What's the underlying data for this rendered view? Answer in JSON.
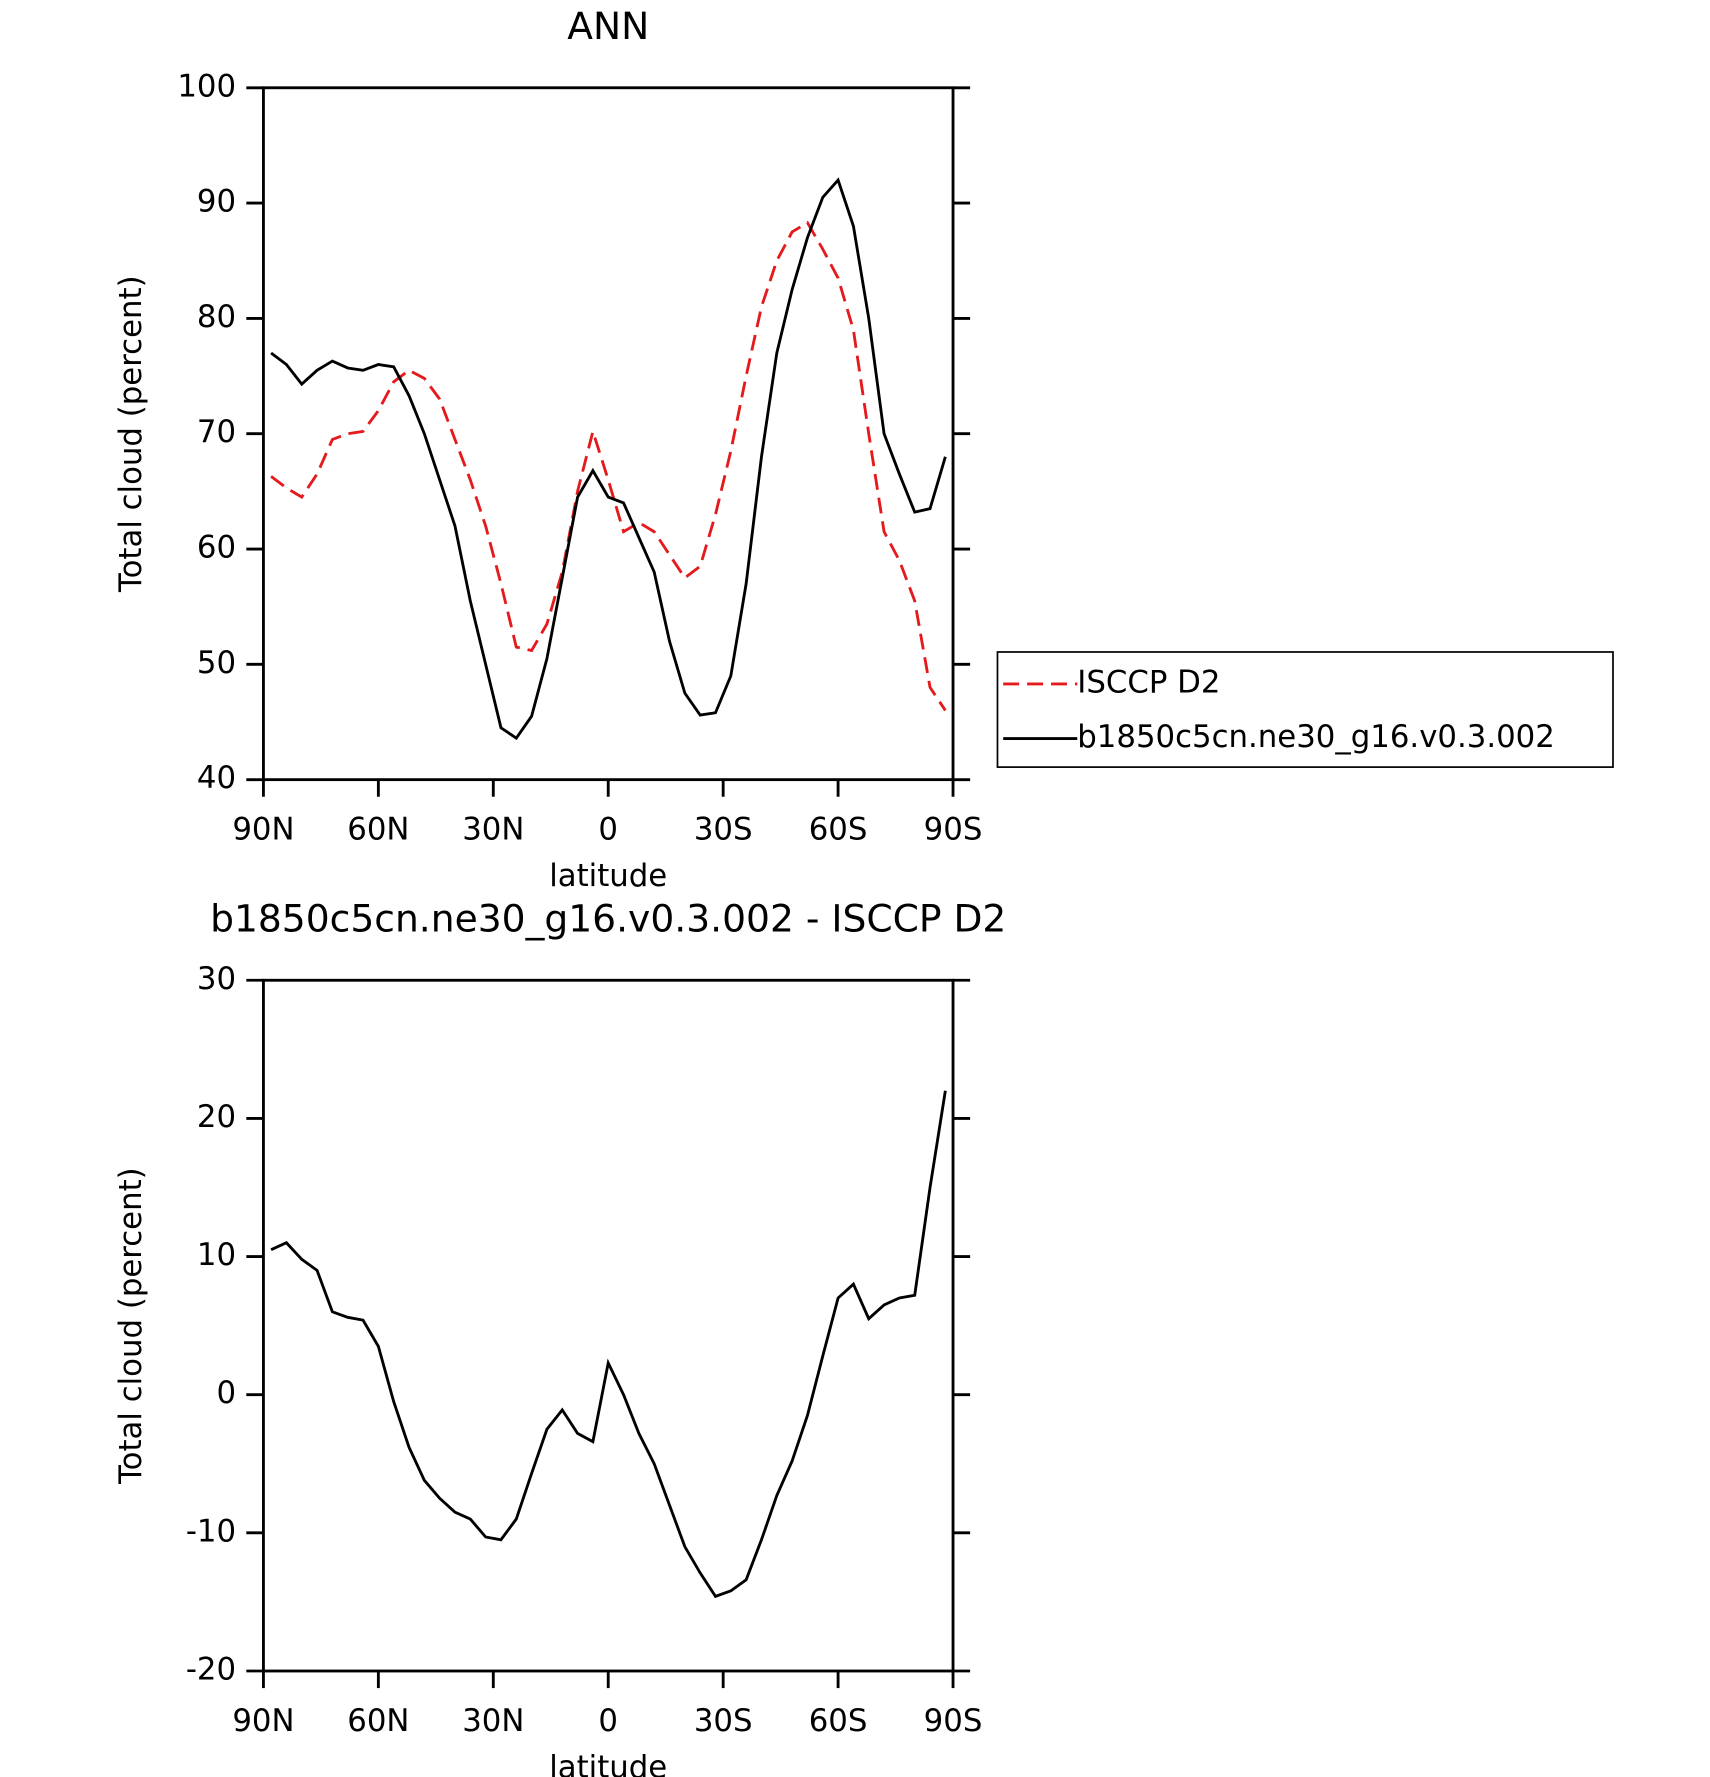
{
  "chart_data": [
    {
      "type": "line",
      "title": "ANN",
      "xlabel": "latitude",
      "ylabel": "Total cloud (percent)",
      "xlim": [
        90,
        -90
      ],
      "ylim": [
        40,
        100
      ],
      "xticks": [
        {
          "value": 90,
          "label": "90N"
        },
        {
          "value": 60,
          "label": "60N"
        },
        {
          "value": 30,
          "label": "30N"
        },
        0,
        {
          "value": -30,
          "label": "30S"
        },
        {
          "value": -60,
          "label": "60S"
        },
        {
          "value": -90,
          "label": "90S"
        }
      ],
      "yticks": [
        40,
        50,
        60,
        70,
        80,
        90,
        100
      ],
      "legend": "right",
      "x": [
        88,
        84,
        80,
        76,
        72,
        68,
        64,
        60,
        56,
        52,
        48,
        44,
        40,
        36,
        32,
        28,
        24,
        20,
        16,
        12,
        8,
        4,
        0,
        -4,
        -8,
        -12,
        -16,
        -20,
        -24,
        -28,
        -32,
        -36,
        -40,
        -44,
        -48,
        -52,
        -56,
        -60,
        -64,
        -68,
        -72,
        -76,
        -80,
        -84,
        -88
      ],
      "series": [
        {
          "name": "ISCCP D2",
          "color": "#e41a1c",
          "dash": true,
          "values": [
            66.3,
            65.3,
            64.5,
            66.5,
            69.5,
            70,
            70.2,
            72,
            74.5,
            75.5,
            74.8,
            73,
            69.5,
            66,
            62,
            57,
            51.5,
            51.2,
            53.5,
            58,
            65,
            70.2,
            66,
            61.5,
            62.3,
            61.5,
            59.5,
            57.5,
            58.5,
            63,
            68.5,
            75,
            81,
            85,
            87.5,
            88.3,
            86,
            83.5,
            79,
            70,
            61.5,
            59,
            55.5,
            48,
            46
          ]
        },
        {
          "name": "b1850c5cn.ne30_g16.v0.3.002",
          "color": "#000000",
          "dash": false,
          "values": [
            77,
            76,
            74.3,
            75.5,
            76.3,
            75.7,
            75.5,
            76,
            75.8,
            73.3,
            70,
            66,
            62,
            55.5,
            50,
            44.5,
            43.6,
            45.5,
            50.5,
            57.5,
            64.5,
            66.8,
            64.5,
            64,
            61,
            58,
            52,
            47.5,
            45.6,
            45.8,
            49,
            57,
            68,
            77,
            82.5,
            87,
            90.5,
            92,
            88,
            80,
            70,
            66.5,
            63.2,
            63.5,
            68
          ]
        }
      ]
    },
    {
      "type": "line",
      "title": "b1850c5cn.ne30_g16.v0.3.002 - ISCCP D2",
      "xlabel": "latitude",
      "ylabel": "Total cloud (percent)",
      "xlim": [
        90,
        -90
      ],
      "ylim": [
        -20,
        30
      ],
      "xticks": [
        {
          "value": 90,
          "label": "90N"
        },
        {
          "value": 60,
          "label": "60N"
        },
        {
          "value": 30,
          "label": "30N"
        },
        0,
        {
          "value": -30,
          "label": "30S"
        },
        {
          "value": -60,
          "label": "60S"
        },
        {
          "value": -90,
          "label": "90S"
        }
      ],
      "yticks": [
        -20,
        -10,
        0,
        10,
        20,
        30
      ],
      "x": [
        88,
        84,
        80,
        76,
        72,
        68,
        64,
        60,
        56,
        52,
        48,
        44,
        40,
        36,
        32,
        28,
        24,
        20,
        16,
        12,
        8,
        4,
        0,
        -4,
        -8,
        -12,
        -16,
        -20,
        -24,
        -28,
        -32,
        -36,
        -40,
        -44,
        -48,
        -52,
        -56,
        -60,
        -64,
        -68,
        -72,
        -76,
        -80,
        -84,
        -88
      ],
      "series": [
        {
          "color": "#000000",
          "dash": false,
          "values": [
            10.5,
            11,
            9.8,
            9,
            6,
            5.6,
            5.4,
            3.5,
            -0.5,
            -3.8,
            -6.2,
            -7.5,
            -8.5,
            -9,
            -10.3,
            -10.5,
            -9,
            -5.7,
            -2.5,
            -1.1,
            -2.8,
            -3.4,
            2.3,
            0,
            -2.8,
            -5,
            -8,
            -11,
            -12.9,
            -14.6,
            -14.2,
            -13.4,
            -10.5,
            -7.3,
            -4.8,
            -1.5,
            2.8,
            7,
            8,
            5.5,
            6.5,
            7,
            7.2,
            15,
            22
          ]
        }
      ]
    }
  ]
}
